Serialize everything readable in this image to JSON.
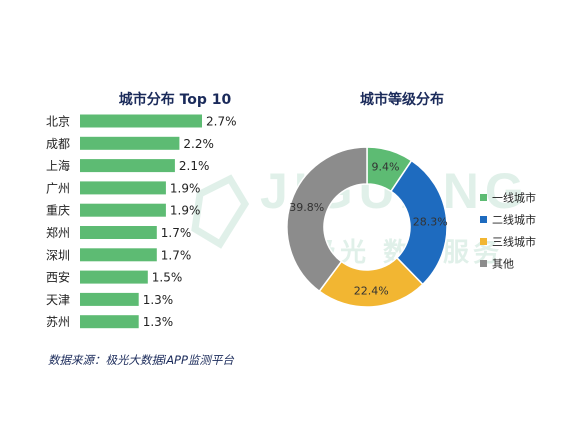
{
  "chart_data": [
    {
      "type": "bar",
      "orientation": "horizontal",
      "title": "城市分布 Top 10",
      "categories": [
        "北京",
        "成都",
        "上海",
        "广州",
        "重庆",
        "郑州",
        "深圳",
        "西安",
        "天津",
        "苏州"
      ],
      "values": [
        2.7,
        2.2,
        2.1,
        1.9,
        1.9,
        1.7,
        1.7,
        1.5,
        1.3,
        1.3
      ],
      "value_labels": [
        "2.7%",
        "2.2%",
        "2.1%",
        "1.9%",
        "1.9%",
        "1.7%",
        "1.7%",
        "1.5%",
        "1.3%",
        "1.3%"
      ],
      "unit": "%",
      "grid": false,
      "bar_color": "#5dbb73"
    },
    {
      "type": "pie",
      "style": "donut",
      "title": "城市等级分布",
      "categories": [
        "一线城市",
        "二线城市",
        "三线城市",
        "其他"
      ],
      "values": [
        9.4,
        28.3,
        22.4,
        39.8
      ],
      "value_labels": [
        "9.4%",
        "28.3%",
        "22.4%",
        "39.8%"
      ],
      "colors": [
        "#5dbb73",
        "#1e6bbf",
        "#f2b632",
        "#8c8c8c"
      ],
      "legend_position": "right"
    }
  ],
  "source": "数据来源：极光大数据iAPP监测平台",
  "watermark": {
    "brand_en": "JIGUANG",
    "brand_cn": "极光 数据服务"
  },
  "colors": {
    "title": "#1a2a5a",
    "label": "#222222"
  }
}
